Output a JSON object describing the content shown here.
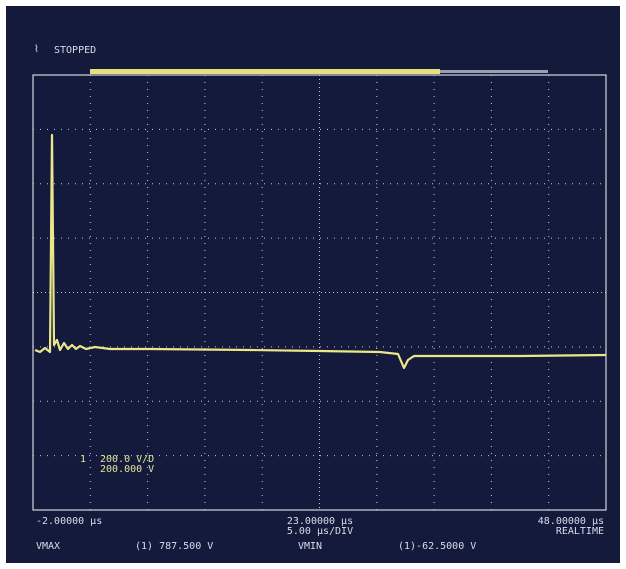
{
  "header": {
    "status": "STOPPED"
  },
  "channel": {
    "number": "1",
    "scale": "200.0 V/D",
    "offset": "200.000 V"
  },
  "timebase": {
    "left": "-2.00000 µs",
    "center": "23.00000 µs",
    "per_div": "5.00 µs/DIV",
    "right": "48.00000 µs",
    "mode": "REALTIME"
  },
  "measurements": {
    "vmax_label": "VMAX",
    "vmax_value": "(1) 787.500 V",
    "vmin_label": "VMIN",
    "vmin_value": "(1)-62.5000 V"
  }
}
